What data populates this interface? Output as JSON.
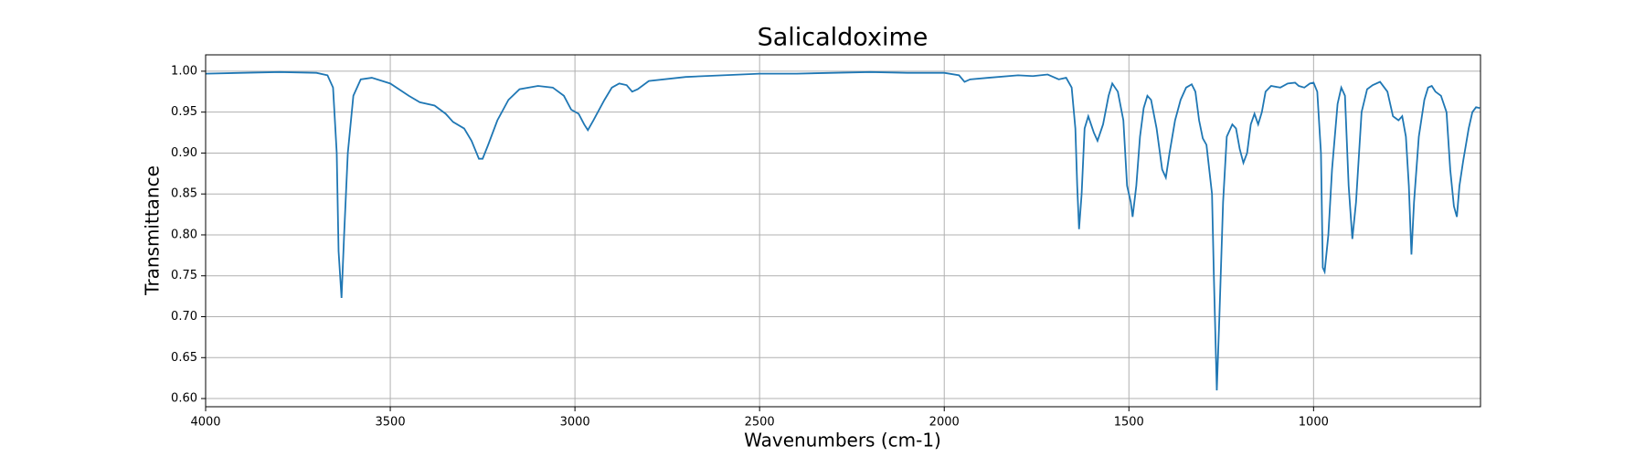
{
  "chart_data": {
    "type": "line",
    "title": "Salicaldoxime",
    "x_label": "Wavenumbers (cm-1)",
    "y_label": "Transmittance",
    "color": "#1f77b4",
    "grid": true,
    "xlim": [
      4000,
      548
    ],
    "ylim": [
      0.59,
      1.02
    ],
    "xticks": [
      4000,
      3500,
      3000,
      2500,
      2000,
      1500,
      1000
    ],
    "yticks": [
      {
        "value": 0.6,
        "label": "0.60"
      },
      {
        "value": 0.65,
        "label": "0.65"
      },
      {
        "value": 0.7,
        "label": "0.70"
      },
      {
        "value": 0.75,
        "label": "0.75"
      },
      {
        "value": 0.8,
        "label": "0.80"
      },
      {
        "value": 0.85,
        "label": "0.85"
      },
      {
        "value": 0.9,
        "label": "0.90"
      },
      {
        "value": 0.95,
        "label": "0.95"
      },
      {
        "value": 1.0,
        "label": "1.00"
      }
    ],
    "x": [
      4000,
      3900,
      3800,
      3700,
      3670,
      3655,
      3645,
      3640,
      3632,
      3625,
      3615,
      3600,
      3580,
      3550,
      3500,
      3450,
      3420,
      3380,
      3350,
      3330,
      3300,
      3280,
      3260,
      3250,
      3235,
      3210,
      3180,
      3150,
      3100,
      3060,
      3030,
      3010,
      2990,
      2975,
      2965,
      2950,
      2920,
      2900,
      2880,
      2860,
      2845,
      2830,
      2800,
      2700,
      2600,
      2500,
      2400,
      2300,
      2200,
      2100,
      2000,
      1960,
      1945,
      1930,
      1880,
      1800,
      1760,
      1720,
      1690,
      1670,
      1655,
      1645,
      1640,
      1635,
      1628,
      1620,
      1610,
      1595,
      1585,
      1570,
      1555,
      1545,
      1530,
      1515,
      1505,
      1495,
      1490,
      1480,
      1470,
      1460,
      1450,
      1440,
      1425,
      1410,
      1400,
      1390,
      1375,
      1360,
      1345,
      1330,
      1320,
      1310,
      1300,
      1290,
      1275,
      1270,
      1262,
      1255,
      1245,
      1235,
      1220,
      1210,
      1200,
      1190,
      1180,
      1170,
      1160,
      1150,
      1140,
      1130,
      1115,
      1090,
      1070,
      1050,
      1040,
      1025,
      1010,
      1000,
      990,
      980,
      975,
      970,
      960,
      950,
      935,
      925,
      915,
      905,
      895,
      885,
      870,
      855,
      840,
      820,
      800,
      785,
      770,
      760,
      750,
      742,
      735,
      728,
      715,
      700,
      690,
      680,
      670,
      655,
      640,
      630,
      620,
      612,
      605,
      595,
      580,
      570,
      560,
      550
    ],
    "values": [
      0.997,
      0.998,
      0.999,
      0.998,
      0.995,
      0.98,
      0.9,
      0.78,
      0.723,
      0.8,
      0.9,
      0.97,
      0.99,
      0.992,
      0.985,
      0.97,
      0.962,
      0.958,
      0.948,
      0.938,
      0.93,
      0.915,
      0.893,
      0.893,
      0.91,
      0.94,
      0.965,
      0.978,
      0.982,
      0.98,
      0.97,
      0.953,
      0.948,
      0.935,
      0.928,
      0.94,
      0.965,
      0.98,
      0.985,
      0.983,
      0.975,
      0.978,
      0.988,
      0.993,
      0.995,
      0.997,
      0.997,
      0.998,
      0.999,
      0.998,
      0.998,
      0.995,
      0.987,
      0.99,
      0.992,
      0.995,
      0.994,
      0.996,
      0.99,
      0.992,
      0.98,
      0.93,
      0.86,
      0.807,
      0.85,
      0.93,
      0.945,
      0.925,
      0.915,
      0.935,
      0.97,
      0.985,
      0.975,
      0.94,
      0.86,
      0.84,
      0.822,
      0.86,
      0.92,
      0.955,
      0.97,
      0.965,
      0.93,
      0.88,
      0.87,
      0.9,
      0.94,
      0.965,
      0.98,
      0.984,
      0.975,
      0.94,
      0.918,
      0.91,
      0.85,
      0.75,
      0.61,
      0.7,
      0.84,
      0.92,
      0.935,
      0.93,
      0.905,
      0.888,
      0.9,
      0.935,
      0.948,
      0.935,
      0.95,
      0.975,
      0.982,
      0.98,
      0.985,
      0.986,
      0.982,
      0.98,
      0.985,
      0.986,
      0.975,
      0.9,
      0.76,
      0.755,
      0.8,
      0.88,
      0.96,
      0.98,
      0.97,
      0.86,
      0.795,
      0.84,
      0.95,
      0.978,
      0.983,
      0.987,
      0.975,
      0.945,
      0.94,
      0.945,
      0.92,
      0.86,
      0.776,
      0.84,
      0.92,
      0.965,
      0.98,
      0.982,
      0.975,
      0.97,
      0.95,
      0.88,
      0.835,
      0.822,
      0.86,
      0.89,
      0.93,
      0.95,
      0.956,
      0.955
    ]
  }
}
